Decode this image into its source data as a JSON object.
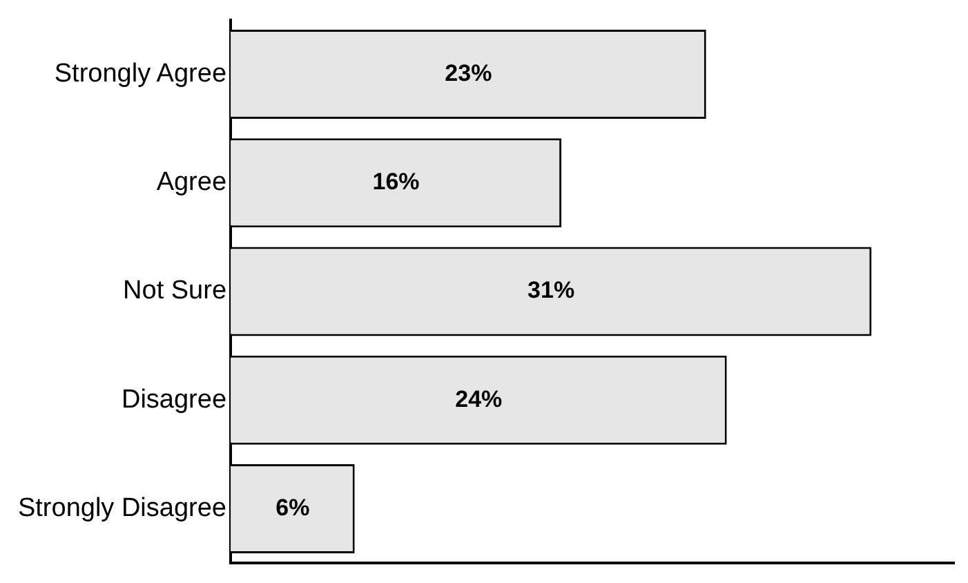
{
  "chart_data": {
    "type": "bar",
    "orientation": "horizontal",
    "categories": [
      "Strongly Agree",
      "Agree",
      "Not Sure",
      "Disagree",
      "Strongly Disagree"
    ],
    "values": [
      23,
      16,
      31,
      24,
      6
    ],
    "color": "#e6e6e6",
    "value_labels": [
      "23%",
      "16%",
      "31%",
      "24%",
      "6%"
    ],
    "grid": false,
    "legend": false,
    "tick_labels": "y"
  }
}
